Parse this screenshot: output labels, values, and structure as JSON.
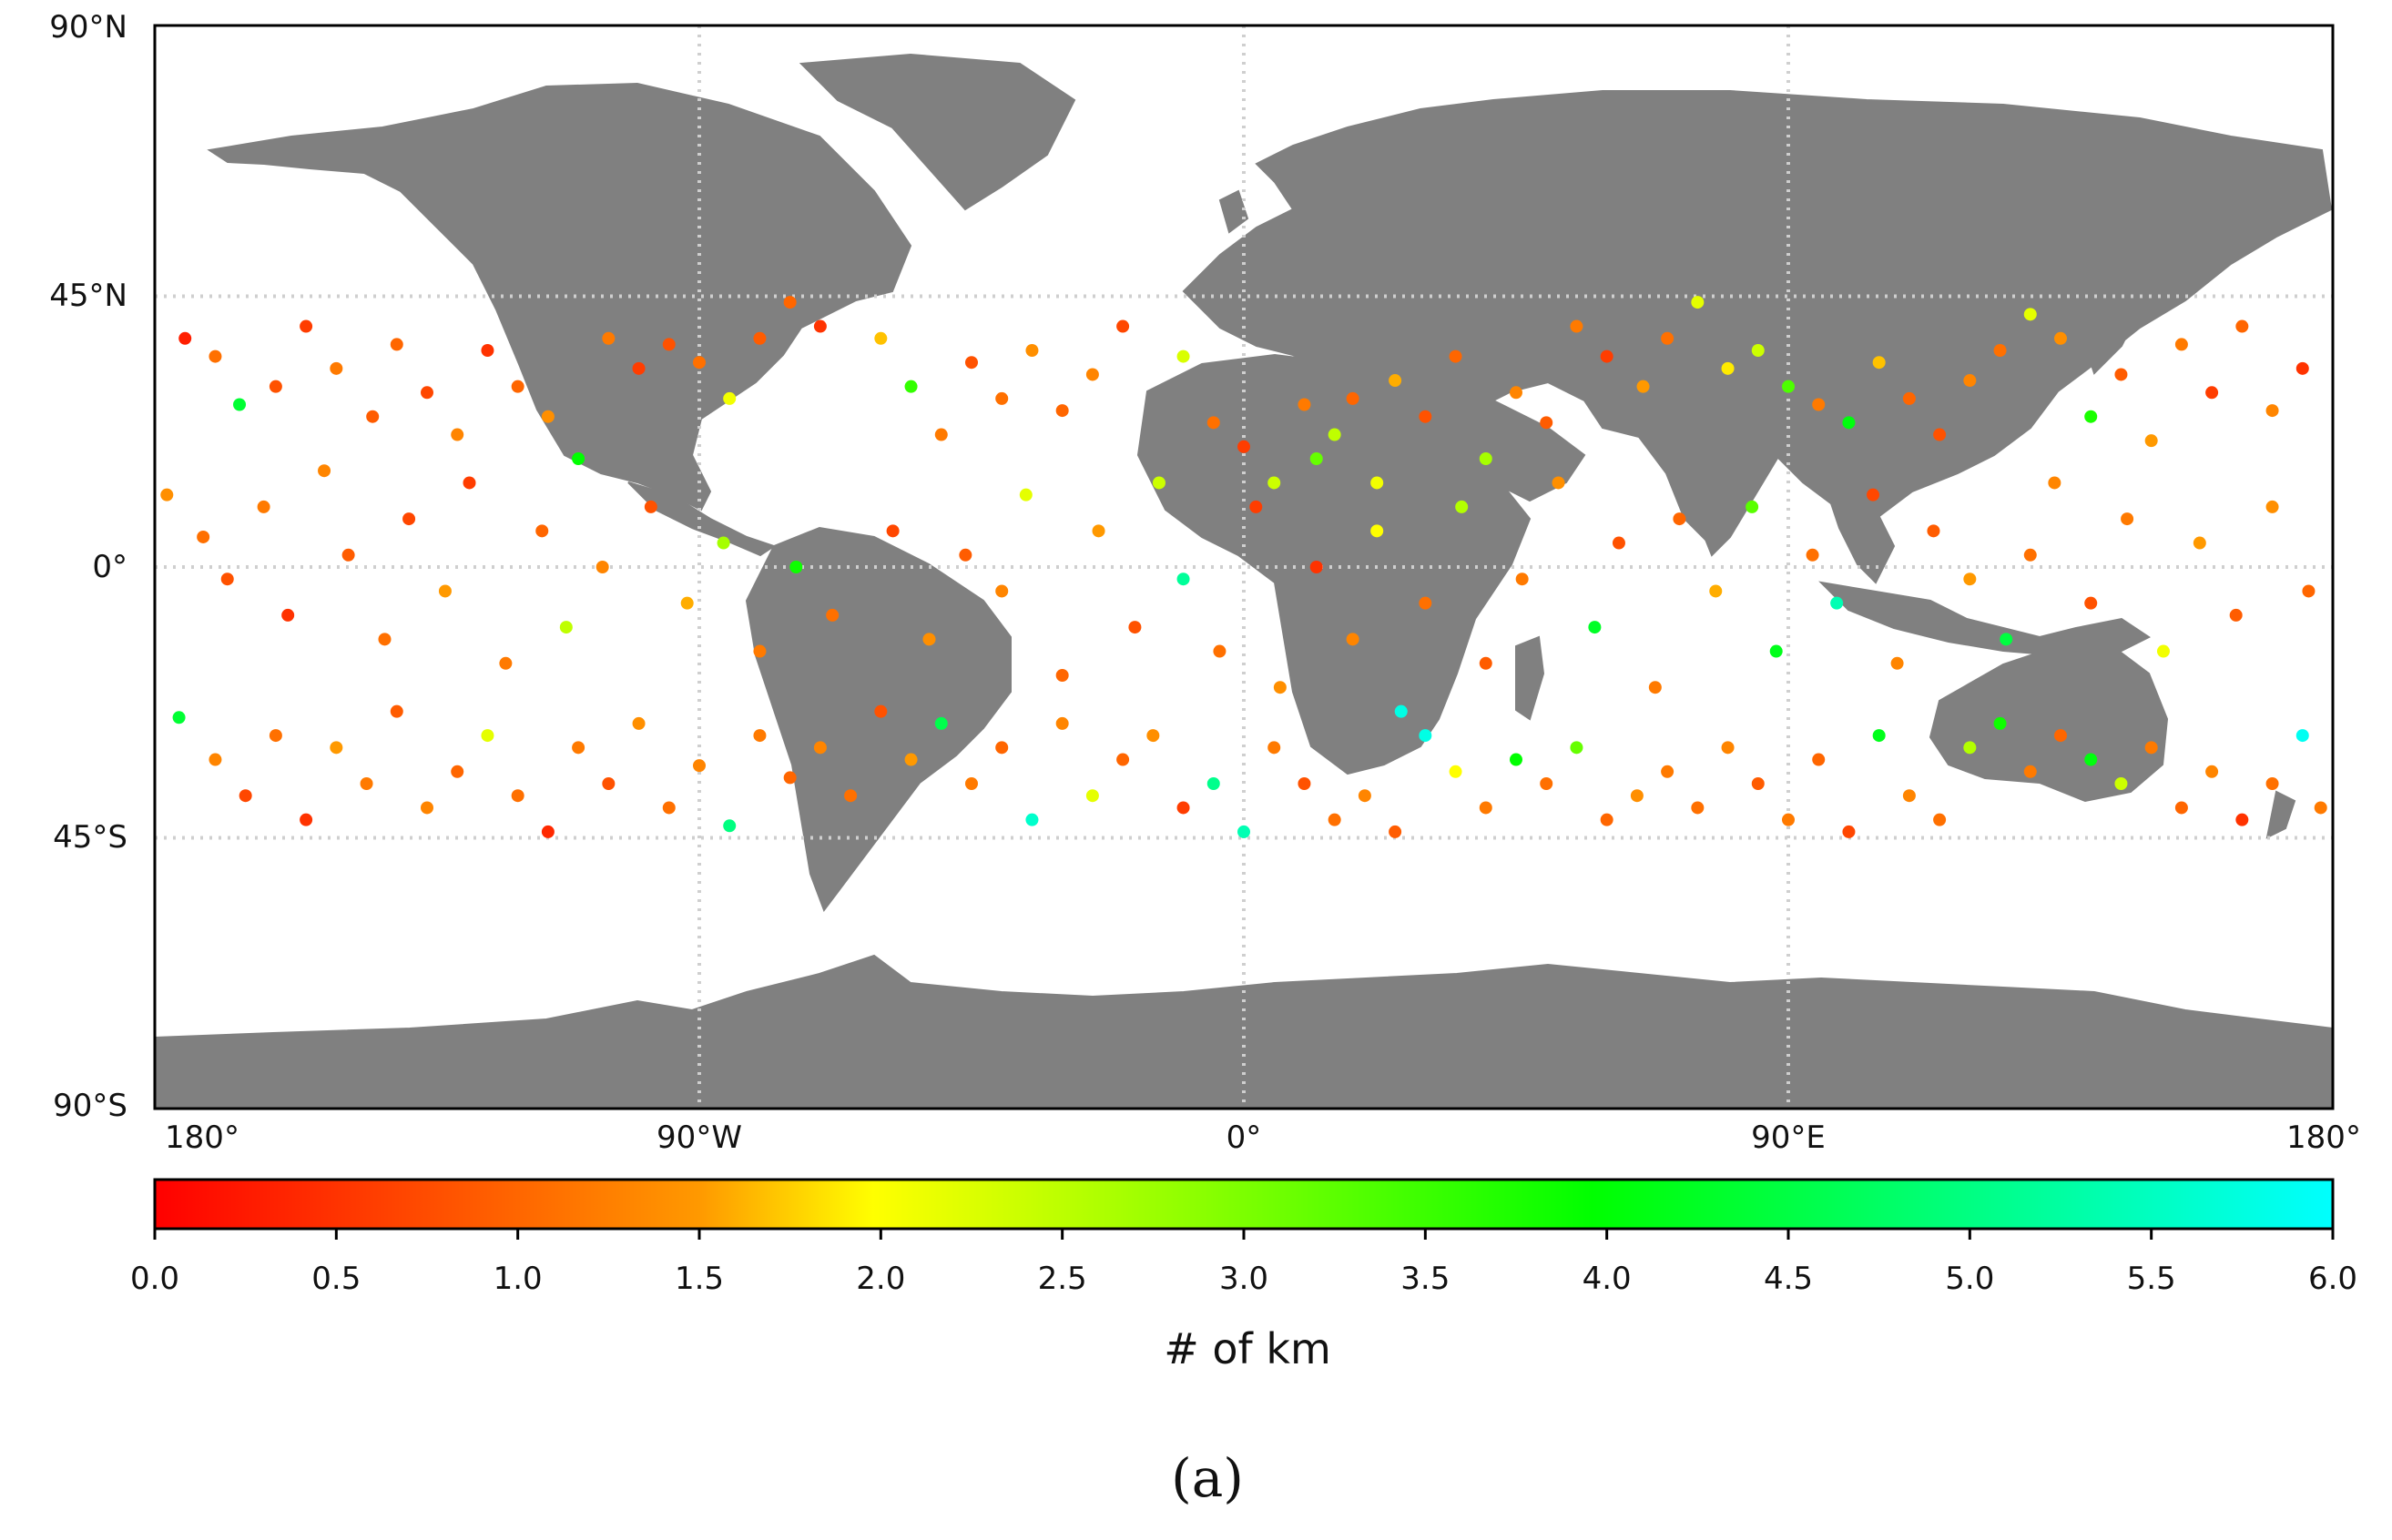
{
  "map": {
    "lat_labels": [
      "90°N",
      "45°N",
      "0°",
      "45°S",
      "90°S"
    ],
    "lon_labels": [
      "180°",
      "90°W",
      "0°",
      "90°E",
      "180°"
    ],
    "colors": {
      "land": "#808080",
      "ocean": "#ffffff",
      "grid": "#cfcfcf"
    }
  },
  "colorbar": {
    "label": "# of km",
    "ticks": [
      "0.0",
      "0.5",
      "1.0",
      "1.5",
      "2.0",
      "2.5",
      "3.0",
      "3.5",
      "4.0",
      "4.5",
      "5.0",
      "5.5",
      "6.0"
    ],
    "range": [
      0,
      6
    ],
    "gradient": [
      "#ff0000",
      "#ff9900",
      "#ffff00",
      "#00ff00",
      "#00ffff"
    ]
  },
  "caption": "(a)",
  "points": [
    [
      -175,
      38,
      0.3
    ],
    [
      -170,
      35,
      1.1
    ],
    [
      -166,
      27,
      4.4
    ],
    [
      -160,
      30,
      0.8
    ],
    [
      -155,
      40,
      0.6
    ],
    [
      -150,
      33,
      1.2
    ],
    [
      -144,
      25,
      0.9
    ],
    [
      -140,
      37,
      1.0
    ],
    [
      -135,
      29,
      0.7
    ],
    [
      -130,
      22,
      1.3
    ],
    [
      -125,
      36,
      0.5
    ],
    [
      -120,
      30,
      1.0
    ],
    [
      -115,
      25,
      1.4
    ],
    [
      -110,
      18,
      4.0
    ],
    [
      -105,
      38,
      1.2
    ],
    [
      -100,
      33,
      0.6
    ],
    [
      -95,
      37,
      0.8
    ],
    [
      -90,
      34,
      1.1
    ],
    [
      -85,
      28,
      2.1
    ],
    [
      -80,
      38,
      0.9
    ],
    [
      -75,
      44,
      1.0
    ],
    [
      -70,
      40,
      0.5
    ],
    [
      -60,
      38,
      1.7
    ],
    [
      -55,
      30,
      3.6
    ],
    [
      -50,
      22,
      1.2
    ],
    [
      -45,
      34,
      0.8
    ],
    [
      -40,
      28,
      1.1
    ],
    [
      -35,
      36,
      1.4
    ],
    [
      -30,
      26,
      1.0
    ],
    [
      -25,
      32,
      1.3
    ],
    [
      -20,
      40,
      0.7
    ],
    [
      -10,
      35,
      2.3
    ],
    [
      -5,
      24,
      1.1
    ],
    [
      0,
      20,
      0.6
    ],
    [
      5,
      14,
      2.4
    ],
    [
      10,
      27,
      1.2
    ],
    [
      12,
      18,
      3.2
    ],
    [
      15,
      22,
      2.5
    ],
    [
      18,
      28,
      1.0
    ],
    [
      22,
      14,
      2.1
    ],
    [
      25,
      31,
      1.6
    ],
    [
      30,
      25,
      0.8
    ],
    [
      35,
      35,
      1.0
    ],
    [
      40,
      18,
      2.7
    ],
    [
      45,
      29,
      1.3
    ],
    [
      50,
      24,
      0.9
    ],
    [
      55,
      40,
      1.2
    ],
    [
      60,
      35,
      0.6
    ],
    [
      66,
      30,
      1.5
    ],
    [
      70,
      38,
      1.1
    ],
    [
      75,
      44,
      2.2
    ],
    [
      80,
      33,
      1.9
    ],
    [
      85,
      36,
      2.4
    ],
    [
      90,
      30,
      3.4
    ],
    [
      95,
      27,
      1.2
    ],
    [
      100,
      24,
      4.1
    ],
    [
      105,
      34,
      1.7
    ],
    [
      110,
      28,
      1.0
    ],
    [
      115,
      22,
      0.8
    ],
    [
      120,
      31,
      1.3
    ],
    [
      125,
      36,
      1.1
    ],
    [
      130,
      42,
      2.2
    ],
    [
      135,
      38,
      1.4
    ],
    [
      140,
      25,
      3.8
    ],
    [
      145,
      32,
      0.9
    ],
    [
      150,
      21,
      1.5
    ],
    [
      155,
      37,
      1.2
    ],
    [
      160,
      29,
      0.6
    ],
    [
      165,
      40,
      1.0
    ],
    [
      170,
      26,
      1.3
    ],
    [
      175,
      33,
      0.5
    ],
    [
      -178,
      12,
      1.4
    ],
    [
      -172,
      5,
      1.1
    ],
    [
      -168,
      -2,
      0.8
    ],
    [
      -162,
      10,
      1.2
    ],
    [
      -158,
      -8,
      0.5
    ],
    [
      -152,
      16,
      1.3
    ],
    [
      -148,
      2,
      0.9
    ],
    [
      -142,
      -12,
      1.1
    ],
    [
      -138,
      8,
      0.7
    ],
    [
      -132,
      -4,
      1.5
    ],
    [
      -128,
      14,
      0.6
    ],
    [
      -122,
      -16,
      1.2
    ],
    [
      -116,
      6,
      1.0
    ],
    [
      -112,
      -10,
      2.5
    ],
    [
      -106,
      0,
      1.3
    ],
    [
      -98,
      10,
      0.8
    ],
    [
      -92,
      -6,
      1.6
    ],
    [
      -86,
      4,
      2.7
    ],
    [
      -80,
      -14,
      1.2
    ],
    [
      -74,
      0,
      3.9
    ],
    [
      -68,
      -8,
      1.1
    ],
    [
      -58,
      6,
      0.7
    ],
    [
      -52,
      -12,
      1.4
    ],
    [
      -46,
      2,
      0.9
    ],
    [
      -40,
      -4,
      1.3
    ],
    [
      -36,
      12,
      2.2
    ],
    [
      -30,
      -18,
      1.0
    ],
    [
      -24,
      6,
      1.5
    ],
    [
      -18,
      -10,
      0.8
    ],
    [
      -14,
      14,
      2.4
    ],
    [
      -10,
      -2,
      5.2
    ],
    [
      -4,
      -14,
      1.1
    ],
    [
      2,
      10,
      0.6
    ],
    [
      6,
      -20,
      1.4
    ],
    [
      12,
      0,
      0.5
    ],
    [
      18,
      -12,
      1.3
    ],
    [
      22,
      6,
      2.0
    ],
    [
      26,
      -24,
      5.8
    ],
    [
      30,
      -6,
      1.1
    ],
    [
      36,
      10,
      2.6
    ],
    [
      40,
      -16,
      0.9
    ],
    [
      46,
      -2,
      1.2
    ],
    [
      52,
      14,
      1.4
    ],
    [
      58,
      -10,
      4.3
    ],
    [
      62,
      4,
      0.8
    ],
    [
      68,
      -20,
      1.2
    ],
    [
      72,
      8,
      1.0
    ],
    [
      78,
      -4,
      1.6
    ],
    [
      84,
      10,
      3.3
    ],
    [
      88,
      -14,
      4.2
    ],
    [
      94,
      2,
      1.1
    ],
    [
      98,
      -6,
      5.4
    ],
    [
      104,
      12,
      0.7
    ],
    [
      108,
      -16,
      1.3
    ],
    [
      114,
      6,
      0.9
    ],
    [
      120,
      -2,
      1.5
    ],
    [
      126,
      -12,
      4.5
    ],
    [
      130,
      2,
      1.1
    ],
    [
      134,
      14,
      1.3
    ],
    [
      140,
      -6,
      0.8
    ],
    [
      146,
      8,
      1.2
    ],
    [
      152,
      -14,
      2.1
    ],
    [
      158,
      4,
      1.5
    ],
    [
      164,
      -8,
      0.9
    ],
    [
      170,
      10,
      1.4
    ],
    [
      176,
      -4,
      1.0
    ],
    [
      -176,
      -25,
      4.4
    ],
    [
      -170,
      -32,
      1.3
    ],
    [
      -165,
      -38,
      0.7
    ],
    [
      -160,
      -28,
      1.1
    ],
    [
      -155,
      -42,
      0.5
    ],
    [
      -150,
      -30,
      1.5
    ],
    [
      -145,
      -36,
      1.2
    ],
    [
      -140,
      -24,
      0.9
    ],
    [
      -135,
      -40,
      1.3
    ],
    [
      -130,
      -34,
      1.0
    ],
    [
      -125,
      -28,
      2.2
    ],
    [
      -120,
      -38,
      1.1
    ],
    [
      -115,
      -44,
      0.4
    ],
    [
      -110,
      -30,
      1.2
    ],
    [
      -105,
      -36,
      0.8
    ],
    [
      -100,
      -26,
      1.4
    ],
    [
      -95,
      -40,
      1.1
    ],
    [
      -90,
      -33,
      1.3
    ],
    [
      -85,
      -43,
      5.0
    ],
    [
      -80,
      -28,
      1.2
    ],
    [
      -75,
      -35,
      1.0
    ],
    [
      -70,
      -30,
      1.3
    ],
    [
      -65,
      -38,
      1.1
    ],
    [
      -60,
      -24,
      0.8
    ],
    [
      -55,
      -32,
      1.5
    ],
    [
      -50,
      -26,
      4.6
    ],
    [
      -45,
      -36,
      1.2
    ],
    [
      -40,
      -30,
      1.0
    ],
    [
      -35,
      -42,
      5.6
    ],
    [
      -30,
      -26,
      1.3
    ],
    [
      -25,
      -38,
      2.2
    ],
    [
      -20,
      -32,
      1.0
    ],
    [
      -15,
      -28,
      1.4
    ],
    [
      -10,
      -40,
      0.6
    ],
    [
      -5,
      -36,
      5.1
    ],
    [
      0,
      -44,
      5.4
    ],
    [
      5,
      -30,
      1.2
    ],
    [
      10,
      -36,
      0.8
    ],
    [
      15,
      -42,
      1.1
    ],
    [
      20,
      -38,
      1.3
    ],
    [
      25,
      -44,
      0.9
    ],
    [
      30,
      -28,
      5.8
    ],
    [
      35,
      -34,
      2.0
    ],
    [
      40,
      -40,
      1.2
    ],
    [
      45,
      -32,
      4.0
    ],
    [
      50,
      -36,
      1.1
    ],
    [
      55,
      -30,
      3.2
    ],
    [
      60,
      -42,
      1.0
    ],
    [
      65,
      -38,
      1.4
    ],
    [
      70,
      -34,
      1.2
    ],
    [
      75,
      -40,
      1.1
    ],
    [
      80,
      -30,
      1.3
    ],
    [
      85,
      -36,
      0.9
    ],
    [
      90,
      -42,
      1.2
    ],
    [
      95,
      -32,
      1.0
    ],
    [
      100,
      -44,
      0.7
    ],
    [
      105,
      -28,
      4.2
    ],
    [
      110,
      -38,
      1.3
    ],
    [
      115,
      -42,
      1.1
    ],
    [
      120,
      -30,
      2.6
    ],
    [
      125,
      -26,
      3.9
    ],
    [
      130,
      -34,
      1.2
    ],
    [
      135,
      -28,
      1.0
    ],
    [
      140,
      -32,
      4.1
    ],
    [
      145,
      -36,
      2.4
    ],
    [
      150,
      -30,
      1.2
    ],
    [
      155,
      -40,
      1.0
    ],
    [
      160,
      -34,
      1.3
    ],
    [
      165,
      -42,
      0.5
    ],
    [
      170,
      -36,
      1.1
    ],
    [
      175,
      -28,
      5.9
    ],
    [
      178,
      -40,
      1.2
    ]
  ]
}
